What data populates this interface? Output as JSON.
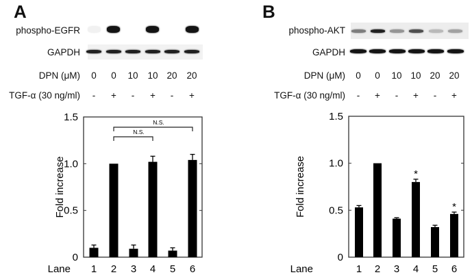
{
  "panels": [
    {
      "letter": "A",
      "blot": {
        "rows": [
          {
            "label": "phospho-EGFR",
            "band_intensity": [
              0.06,
              1.0,
              0.0,
              1.0,
              0.0,
              1.0
            ]
          },
          {
            "label": "GAPDH",
            "band_intensity": [
              0.95,
              0.95,
              0.95,
              0.95,
              0.95,
              0.95
            ]
          }
        ],
        "conditions": [
          {
            "label": "DPN (μM)",
            "values": [
              "0",
              "0",
              "10",
              "10",
              "20",
              "20"
            ]
          },
          {
            "label": "TGF-α (30 ng/ml)",
            "values": [
              "-",
              "+",
              "-",
              "+",
              "-",
              "+"
            ]
          }
        ]
      }
    },
    {
      "letter": "B",
      "blot": {
        "rows": [
          {
            "label": "phospho-AKT",
            "band_intensity": [
              0.55,
              0.95,
              0.45,
              0.75,
              0.3,
              0.4
            ]
          },
          {
            "label": "GAPDH",
            "band_intensity": [
              1.0,
              1.0,
              1.0,
              1.0,
              1.0,
              1.0
            ]
          }
        ],
        "conditions": [
          {
            "label": "DPN (μM)",
            "values": [
              "0",
              "0",
              "10",
              "10",
              "20",
              "20"
            ]
          },
          {
            "label": "TGF-α (30 ng/ml)",
            "values": [
              "-",
              "+",
              "-",
              "+",
              "-",
              "+"
            ]
          }
        ]
      }
    }
  ],
  "chart_data": [
    {
      "type": "bar",
      "panel": "A",
      "title": "",
      "xlabel": "Lane",
      "ylabel": "Fold increase",
      "categories": [
        "1",
        "2",
        "3",
        "4",
        "5",
        "6"
      ],
      "values": [
        0.1,
        1.0,
        0.09,
        1.02,
        0.07,
        1.04
      ],
      "error": [
        0.03,
        0.0,
        0.04,
        0.06,
        0.03,
        0.06
      ],
      "ylim": [
        0,
        1.5
      ],
      "yticks": [
        "0",
        "0.5",
        "1.0",
        "1.5"
      ],
      "grid": false,
      "bar_color": "#000000",
      "annotations": [
        {
          "type": "bracket",
          "from": "2",
          "to": "4",
          "label": "N.S."
        },
        {
          "type": "bracket",
          "from": "2",
          "to": "6",
          "label": "N.S."
        }
      ]
    },
    {
      "type": "bar",
      "panel": "B",
      "title": "",
      "xlabel": "Lane",
      "ylabel": "Fold increase",
      "categories": [
        "1",
        "2",
        "3",
        "4",
        "5",
        "6"
      ],
      "values": [
        0.53,
        1.0,
        0.41,
        0.8,
        0.32,
        0.46
      ],
      "error": [
        0.02,
        0.0,
        0.01,
        0.03,
        0.02,
        0.02
      ],
      "ylim": [
        0,
        1.5
      ],
      "yticks": [
        "0",
        "0.5",
        "1.0",
        "1.5"
      ],
      "grid": false,
      "bar_color": "#000000",
      "annotations": [
        {
          "type": "asterisk",
          "at": "4",
          "label": "*"
        },
        {
          "type": "asterisk",
          "at": "6",
          "label": "*"
        }
      ]
    }
  ]
}
